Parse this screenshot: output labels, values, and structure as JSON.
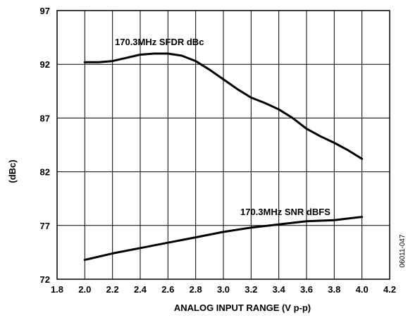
{
  "chart_data": {
    "type": "line",
    "title": "",
    "xlabel": "ANALOG INPUT RANGE (V p-p)",
    "ylabel": "(dBc)",
    "xlim": [
      1.8,
      4.2
    ],
    "ylim": [
      72,
      97
    ],
    "x_ticks": [
      "1.8",
      "2.0",
      "2.2",
      "2.4",
      "2.6",
      "2.8",
      "3.0",
      "3.2",
      "3.4",
      "3.6",
      "3.8",
      "4.0",
      "4.2"
    ],
    "y_ticks": [
      "72",
      "77",
      "82",
      "87",
      "92",
      "97"
    ],
    "grid": true,
    "series": [
      {
        "name": "170.3MHz SFDR dBc",
        "color": "#000000",
        "points": [
          [
            2.0,
            92.2
          ],
          [
            2.1,
            92.2
          ],
          [
            2.2,
            92.3
          ],
          [
            2.3,
            92.6
          ],
          [
            2.4,
            92.9
          ],
          [
            2.5,
            93.0
          ],
          [
            2.6,
            93.0
          ],
          [
            2.7,
            92.8
          ],
          [
            2.8,
            92.3
          ],
          [
            2.9,
            91.5
          ],
          [
            3.0,
            90.6
          ],
          [
            3.1,
            89.7
          ],
          [
            3.2,
            88.9
          ],
          [
            3.3,
            88.4
          ],
          [
            3.4,
            87.8
          ],
          [
            3.5,
            87.0
          ],
          [
            3.6,
            86.0
          ],
          [
            3.7,
            85.3
          ],
          [
            3.8,
            84.7
          ],
          [
            3.9,
            84.0
          ],
          [
            4.0,
            83.2
          ]
        ]
      },
      {
        "name": "170.3MHz SNR dBFS",
        "color": "#000000",
        "points": [
          [
            2.0,
            73.8
          ],
          [
            2.2,
            74.4
          ],
          [
            2.4,
            74.9
          ],
          [
            2.6,
            75.4
          ],
          [
            2.8,
            75.9
          ],
          [
            3.0,
            76.4
          ],
          [
            3.2,
            76.8
          ],
          [
            3.4,
            77.1
          ],
          [
            3.6,
            77.4
          ],
          [
            3.8,
            77.5
          ],
          [
            4.0,
            77.8
          ]
        ]
      }
    ],
    "figure_id": "06011-047"
  }
}
